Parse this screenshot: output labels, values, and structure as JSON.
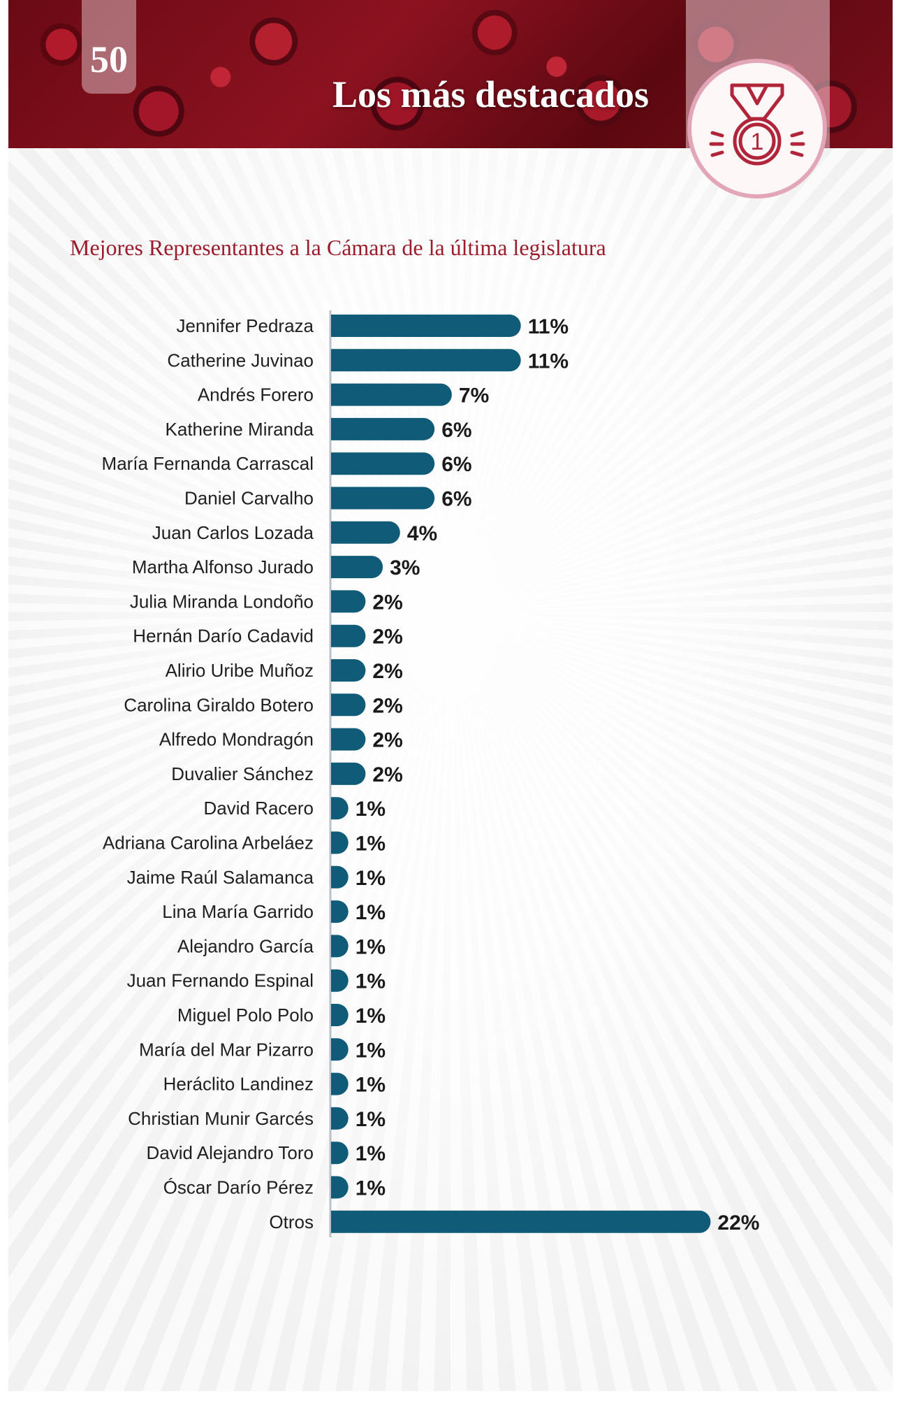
{
  "header": {
    "page_number": "50",
    "title": "Los más destacados",
    "medal_number": "1"
  },
  "subtitle": "Mejores Representantes a la Cámara de la última legislatura",
  "colors": {
    "bar": "#0f5b78",
    "title_red": "#9b1c2c",
    "banner": "#7a0e1a"
  },
  "icons": {
    "medal": "medal-icon"
  },
  "chart_data": {
    "type": "bar",
    "orientation": "horizontal",
    "title": "Mejores Representantes a la Cámara de la última legislatura",
    "xlabel": "",
    "ylabel": "",
    "xlim": [
      0,
      22
    ],
    "grid": false,
    "categories": [
      "Jennifer Pedraza",
      "Catherine Juvinao",
      "Andrés Forero",
      "Katherine Miranda",
      "María Fernanda Carrascal",
      "Daniel Carvalho",
      "Juan Carlos Lozada",
      "Martha Alfonso Jurado",
      "Julia Miranda Londoño",
      "Hernán Darío Cadavid",
      "Alirio Uribe Muñoz",
      "Carolina Giraldo Botero",
      "Alfredo Mondragón",
      "Duvalier Sánchez",
      "David Racero",
      "Adriana Carolina Arbeláez",
      "Jaime Raúl Salamanca",
      "Lina María Garrido",
      "Alejandro García",
      "Juan Fernando Espinal",
      "Miguel Polo Polo",
      "María del Mar Pizarro",
      "Heráclito Landinez",
      "Christian Munir Garcés",
      "David Alejandro Toro",
      "Óscar Darío Pérez",
      "Otros"
    ],
    "values": [
      11,
      11,
      7,
      6,
      6,
      6,
      4,
      3,
      2,
      2,
      2,
      2,
      2,
      2,
      1,
      1,
      1,
      1,
      1,
      1,
      1,
      1,
      1,
      1,
      1,
      1,
      22
    ],
    "labels": [
      "11%",
      "11%",
      "7%",
      "6%",
      "6%",
      "6%",
      "4%",
      "3%",
      "2%",
      "2%",
      "2%",
      "2%",
      "2%",
      "2%",
      "1%",
      "1%",
      "1%",
      "1%",
      "1%",
      "1%",
      "1%",
      "1%",
      "1%",
      "1%",
      "1%",
      "1%",
      "22%"
    ]
  }
}
